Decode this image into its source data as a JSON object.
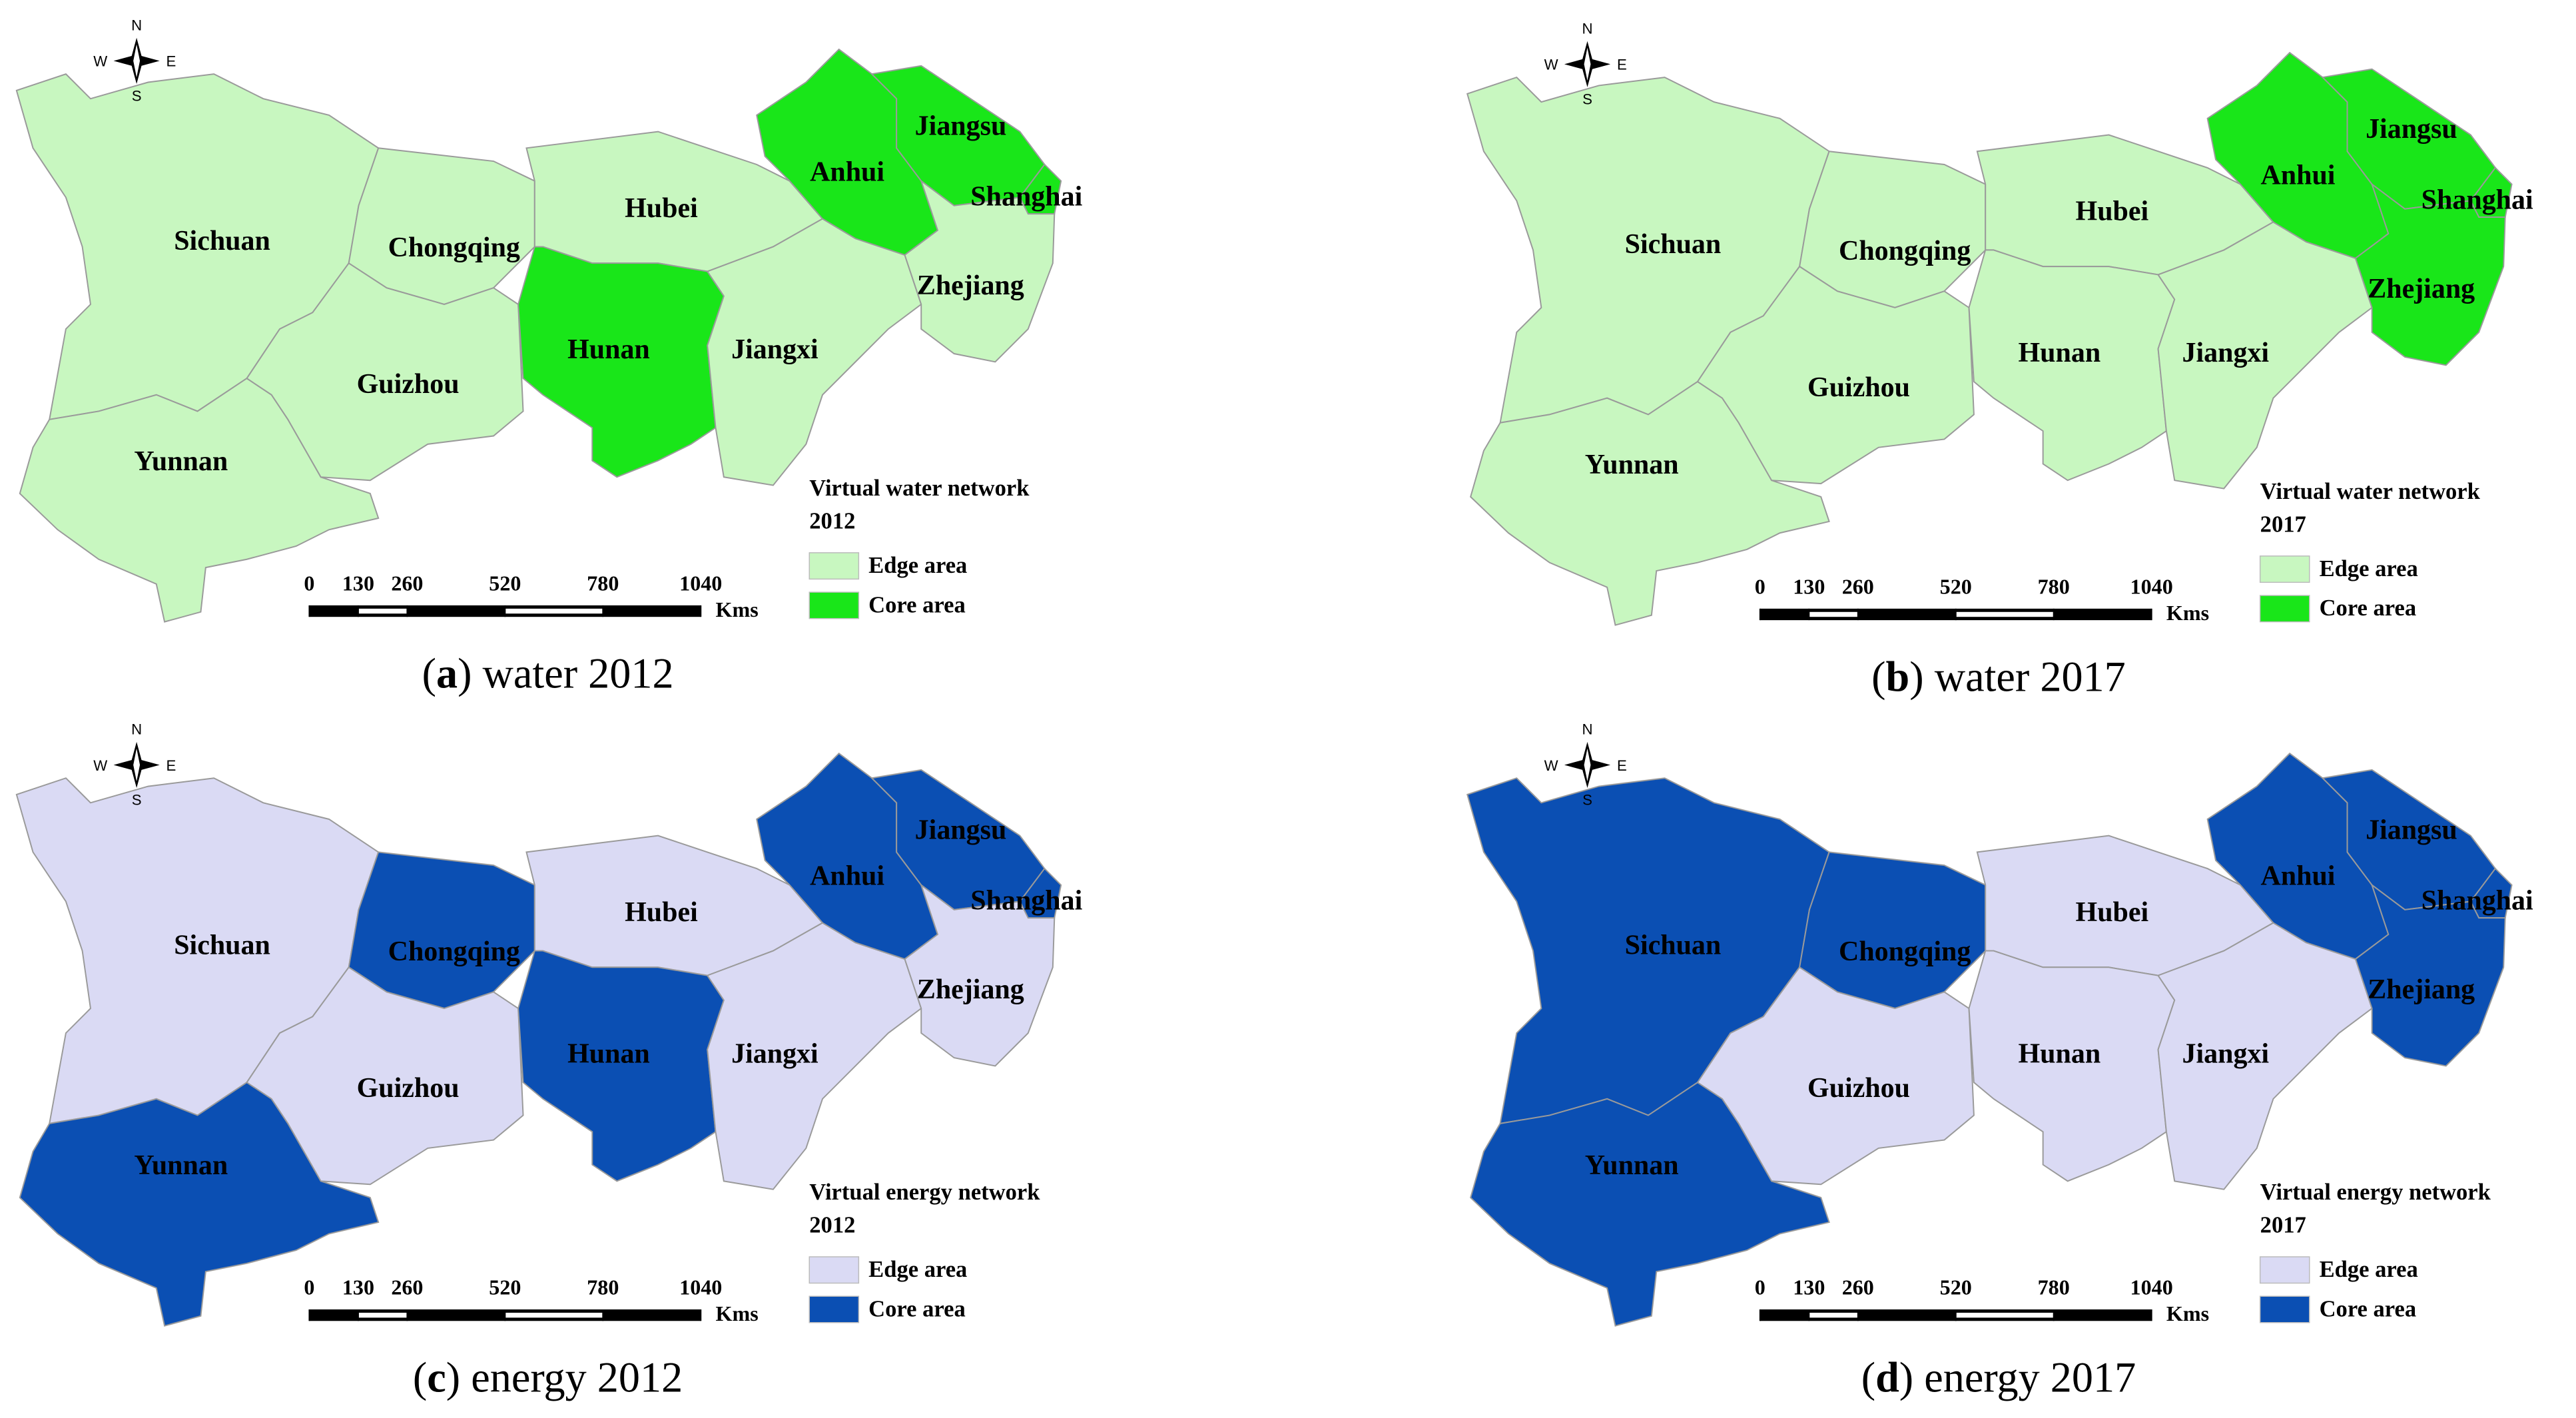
{
  "panels": [
    {
      "caption": {
        "open": "(",
        "letter": "a",
        "rest": ") water 2012"
      },
      "legend": {
        "title": [
          "Virtual water network",
          "2012"
        ],
        "items": [
          {
            "label": "Edge area",
            "color": "#c8f7c0"
          },
          {
            "label": "Core area",
            "color": "#19e619"
          }
        ]
      },
      "scale": {
        "ticks": [
          0,
          130,
          260,
          520,
          780,
          1040
        ],
        "unit": "Kms"
      },
      "compass": {
        "n": "N",
        "s": "S",
        "w": "W",
        "e": "E"
      },
      "provinces": [
        {
          "name": "Sichuan",
          "color": "#c8f7c0"
        },
        {
          "name": "Yunnan",
          "color": "#c8f7c0"
        },
        {
          "name": "Chongqing",
          "color": "#c8f7c0"
        },
        {
          "name": "Guizhou",
          "color": "#c8f7c0"
        },
        {
          "name": "Hubei",
          "color": "#c8f7c0"
        },
        {
          "name": "Hunan",
          "color": "#19e619"
        },
        {
          "name": "Jiangxi",
          "color": "#c8f7c0"
        },
        {
          "name": "Anhui",
          "color": "#19e619"
        },
        {
          "name": "Jiangsu",
          "color": "#19e619"
        },
        {
          "name": "Shanghai",
          "color": "#19e619"
        },
        {
          "name": "Zhejiang",
          "color": "#c8f7c0"
        }
      ]
    },
    {
      "caption": {
        "open": "(",
        "letter": "b",
        "rest": ") water 2017"
      },
      "legend": {
        "title": [
          "Virtual water network",
          "2017"
        ],
        "items": [
          {
            "label": "Edge area",
            "color": "#c8f7c0"
          },
          {
            "label": "Core area",
            "color": "#19e619"
          }
        ]
      },
      "scale": {
        "ticks": [
          0,
          130,
          260,
          520,
          780,
          1040
        ],
        "unit": "Kms"
      },
      "compass": {
        "n": "N",
        "s": "S",
        "w": "W",
        "e": "E"
      },
      "provinces": [
        {
          "name": "Sichuan",
          "color": "#c8f7c0"
        },
        {
          "name": "Yunnan",
          "color": "#c8f7c0"
        },
        {
          "name": "Chongqing",
          "color": "#c8f7c0"
        },
        {
          "name": "Guizhou",
          "color": "#c8f7c0"
        },
        {
          "name": "Hubei",
          "color": "#c8f7c0"
        },
        {
          "name": "Hunan",
          "color": "#c8f7c0"
        },
        {
          "name": "Jiangxi",
          "color": "#c8f7c0"
        },
        {
          "name": "Anhui",
          "color": "#19e619"
        },
        {
          "name": "Jiangsu",
          "color": "#19e619"
        },
        {
          "name": "Shanghai",
          "color": "#19e619"
        },
        {
          "name": "Zhejiang",
          "color": "#19e619"
        }
      ]
    },
    {
      "caption": {
        "open": "(",
        "letter": "c",
        "rest": ") energy 2012"
      },
      "legend": {
        "title": [
          "Virtual energy network",
          "2012"
        ],
        "items": [
          {
            "label": "Edge area",
            "color": "#dadaf4"
          },
          {
            "label": "Core area",
            "color": "#0b4fb3"
          }
        ]
      },
      "scale": {
        "ticks": [
          0,
          130,
          260,
          520,
          780,
          1040
        ],
        "unit": "Kms"
      },
      "compass": {
        "n": "N",
        "s": "S",
        "w": "W",
        "e": "E"
      },
      "provinces": [
        {
          "name": "Sichuan",
          "color": "#dadaf4"
        },
        {
          "name": "Yunnan",
          "color": "#0b4fb3"
        },
        {
          "name": "Chongqing",
          "color": "#0b4fb3"
        },
        {
          "name": "Guizhou",
          "color": "#dadaf4"
        },
        {
          "name": "Hubei",
          "color": "#dadaf4"
        },
        {
          "name": "Hunan",
          "color": "#0b4fb3"
        },
        {
          "name": "Jiangxi",
          "color": "#dadaf4"
        },
        {
          "name": "Anhui",
          "color": "#0b4fb3"
        },
        {
          "name": "Jiangsu",
          "color": "#0b4fb3"
        },
        {
          "name": "Shanghai",
          "color": "#0b4fb3"
        },
        {
          "name": "Zhejiang",
          "color": "#dadaf4"
        }
      ]
    },
    {
      "caption": {
        "open": "(",
        "letter": "d",
        "rest": ") energy 2017"
      },
      "legend": {
        "title": [
          "Virtual energy network",
          "2017"
        ],
        "items": [
          {
            "label": "Edge area",
            "color": "#dadaf4"
          },
          {
            "label": "Core area",
            "color": "#0b4fb3"
          }
        ]
      },
      "scale": {
        "ticks": [
          0,
          130,
          260,
          520,
          780,
          1040
        ],
        "unit": "Kms"
      },
      "compass": {
        "n": "N",
        "s": "S",
        "w": "W",
        "e": "E"
      },
      "provinces": [
        {
          "name": "Sichuan",
          "color": "#0b4fb3"
        },
        {
          "name": "Yunnan",
          "color": "#0b4fb3"
        },
        {
          "name": "Chongqing",
          "color": "#0b4fb3"
        },
        {
          "name": "Guizhou",
          "color": "#dadaf4"
        },
        {
          "name": "Hubei",
          "color": "#dadaf4"
        },
        {
          "name": "Hunan",
          "color": "#dadaf4"
        },
        {
          "name": "Jiangxi",
          "color": "#dadaf4"
        },
        {
          "name": "Anhui",
          "color": "#0b4fb3"
        },
        {
          "name": "Jiangsu",
          "color": "#0b4fb3"
        },
        {
          "name": "Shanghai",
          "color": "#0b4fb3"
        },
        {
          "name": "Zhejiang",
          "color": "#0b4fb3"
        }
      ]
    }
  ]
}
